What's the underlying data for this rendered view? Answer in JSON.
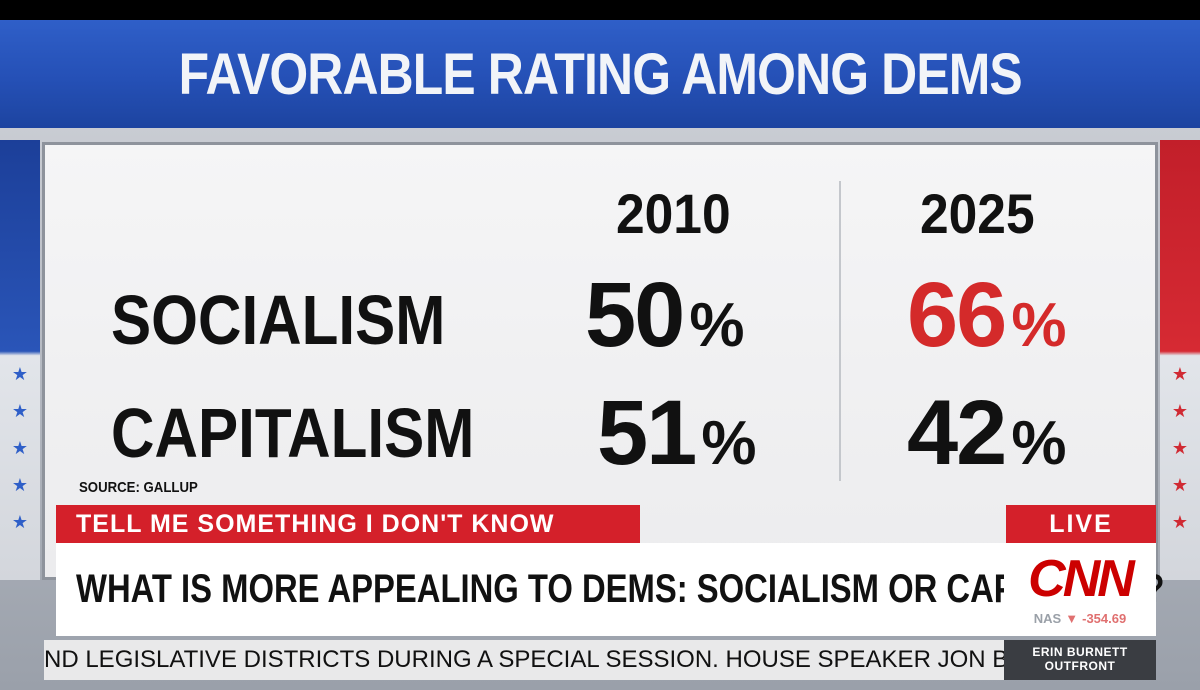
{
  "header": {
    "title": "FAVORABLE RATING AMONG DEMS"
  },
  "board": {
    "years": [
      "2010",
      "2025"
    ],
    "rows": [
      {
        "label": "SOCIALISM",
        "values": [
          "50",
          "66"
        ],
        "unit": "%"
      },
      {
        "label": "CAPITALISM",
        "values": [
          "51",
          "42"
        ],
        "unit": "%"
      }
    ],
    "highlight_color": "#d42a2a",
    "source": "SOURCE: GALLUP"
  },
  "lower_third": {
    "segment": "TELL ME SOMETHING I DON'T KNOW",
    "live": "LIVE",
    "headline": "WHAT IS MORE APPEALING TO DEMS: SOCIALISM OR CAPITALISM?",
    "logo": "CNN",
    "stock": {
      "index": "NAS",
      "change": "-354.69",
      "direction": "down"
    },
    "crawl": "ND LEGISLATIVE DISTRICTS DURING A SPECIAL SESSION. HOUSE SPEAKER JON BURNS",
    "show": [
      "ERIN BURNETT",
      "OUTFRONT"
    ]
  }
}
